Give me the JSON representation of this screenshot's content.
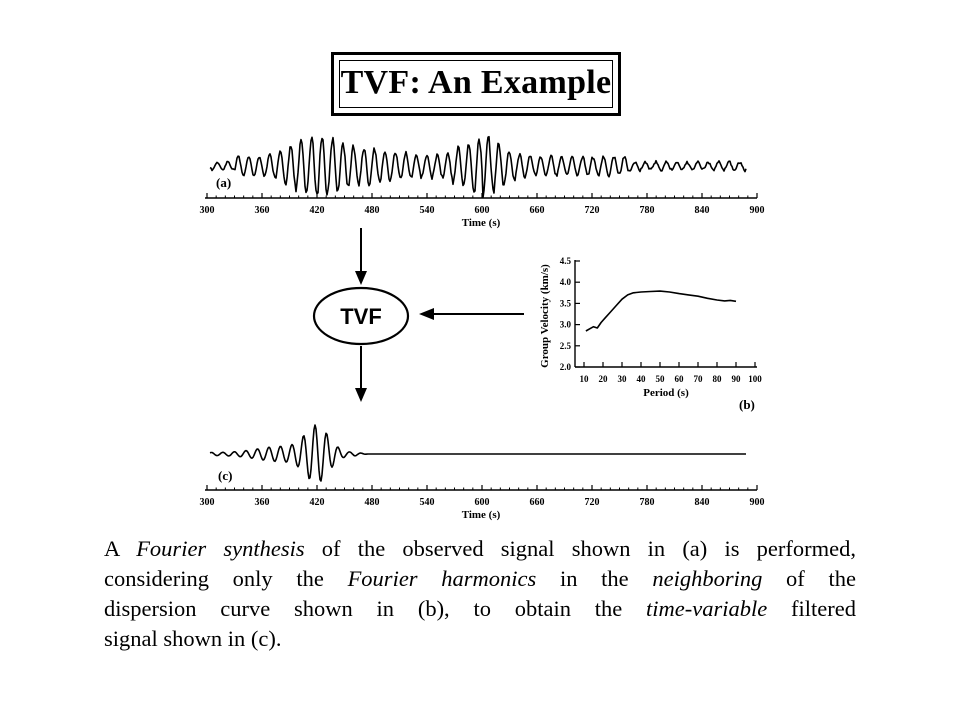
{
  "title": "TVF: An Example",
  "seismograms": {
    "a": {
      "label": "(a)"
    },
    "c": {
      "label": "(c)"
    },
    "x_axis_label": "Time (s)",
    "x_ticks": [
      "300",
      "360",
      "420",
      "480",
      "540",
      "600",
      "660",
      "720",
      "780",
      "840",
      "900"
    ]
  },
  "filter_box": {
    "label": "TVF"
  },
  "dispersion": {
    "label": "(b)",
    "x_axis_label": "Period (s)",
    "y_axis_label": "Group Velocity (km/s)",
    "x_ticks": [
      "10",
      "20",
      "30",
      "40",
      "50",
      "60",
      "70",
      "80",
      "90",
      "100"
    ],
    "y_ticks": [
      "2.0",
      "2.5",
      "3.0",
      "3.5",
      "4.0",
      "4.5"
    ]
  },
  "caption": {
    "lines": [
      [
        {
          "t": "A ",
          "i": false
        },
        {
          "t": "Fourier synthesis",
          "i": true
        },
        {
          "t": " of the observed signal shown in (a) is performed,",
          "i": false
        }
      ],
      [
        {
          "t": "considering only the ",
          "i": false
        },
        {
          "t": "Fourier harmonics",
          "i": true
        },
        {
          "t": " in the ",
          "i": false
        },
        {
          "t": "neighboring",
          "i": true
        },
        {
          "t": " of the",
          "i": false
        }
      ],
      [
        {
          "t": "dispersion curve shown in (b), to obtain the ",
          "i": false
        },
        {
          "t": "time-variable",
          "i": true
        },
        {
          "t": " filtered",
          "i": false
        }
      ],
      [
        {
          "t": "signal shown in (c).",
          "i": false
        }
      ]
    ]
  },
  "colors": {
    "ink": "#000000",
    "background": "#ffffff"
  }
}
